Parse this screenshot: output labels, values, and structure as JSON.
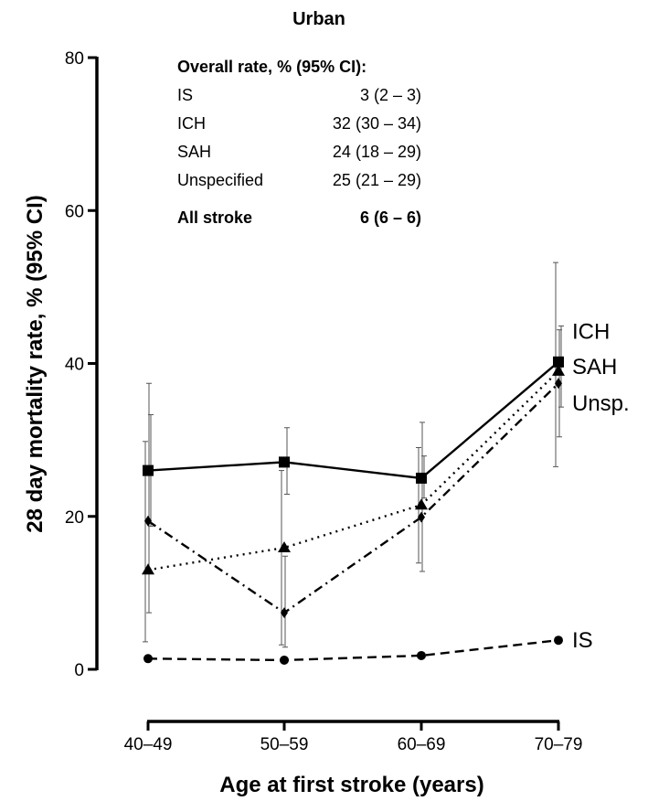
{
  "chart_data": {
    "type": "line",
    "title": "Urban",
    "xlabel": "Age at first stroke (years)",
    "ylabel": "28 day mortality rate, % (95% CI)",
    "categories": [
      "40–49",
      "50–59",
      "60–69",
      "70–79"
    ],
    "ylim": [
      0,
      80
    ],
    "yticks": [
      "0",
      "20",
      "40",
      "60",
      "80"
    ],
    "grid": false,
    "series": [
      {
        "name": "IS",
        "end_label": "IS",
        "marker": "circle",
        "dash": "dashed",
        "values": [
          1.4,
          1.2,
          1.8,
          3.8
        ],
        "ci": null
      },
      {
        "name": "ICH",
        "end_label": "ICH",
        "marker": "square",
        "dash": "solid",
        "values": [
          26,
          27.1,
          25,
          40.2
        ],
        "ci": [
          [
            18.7,
            33.3
          ],
          [
            22.9,
            31.6
          ],
          [
            22.4,
            27.9
          ],
          [
            34.3,
            44.9
          ]
        ]
      },
      {
        "name": "SAH",
        "end_label": "SAH",
        "marker": "triangle",
        "dash": "dotted",
        "values": [
          13,
          15.9,
          21.5,
          39
        ],
        "ci": [
          [
            3.6,
            29.8
          ],
          [
            3.2,
            26
          ],
          [
            13.9,
            29
          ],
          [
            26.5,
            53.2
          ]
        ]
      },
      {
        "name": "Unspecified",
        "end_label": "Unsp.",
        "marker": "diamond",
        "dash": "dashdot",
        "values": [
          19.4,
          7.4,
          19.9,
          37.4
        ],
        "ci": [
          [
            7.4,
            37.4
          ],
          [
            2.9,
            14.8
          ],
          [
            12.8,
            32.3
          ],
          [
            30.4,
            44.4
          ]
        ]
      }
    ],
    "table": {
      "header": "Overall rate, % (95% CI):",
      "rows": [
        {
          "label": "IS",
          "value": "3 (2 – 3)",
          "bold": false
        },
        {
          "label": "ICH",
          "value": "32 (30 – 34)",
          "bold": false
        },
        {
          "label": "SAH",
          "value": "24 (18 – 29)",
          "bold": false
        },
        {
          "label": "Unspecified",
          "value": "25 (21 – 29)",
          "bold": false
        },
        {
          "label": "All stroke",
          "value": "6 (6 – 6)",
          "bold": true
        }
      ]
    }
  }
}
